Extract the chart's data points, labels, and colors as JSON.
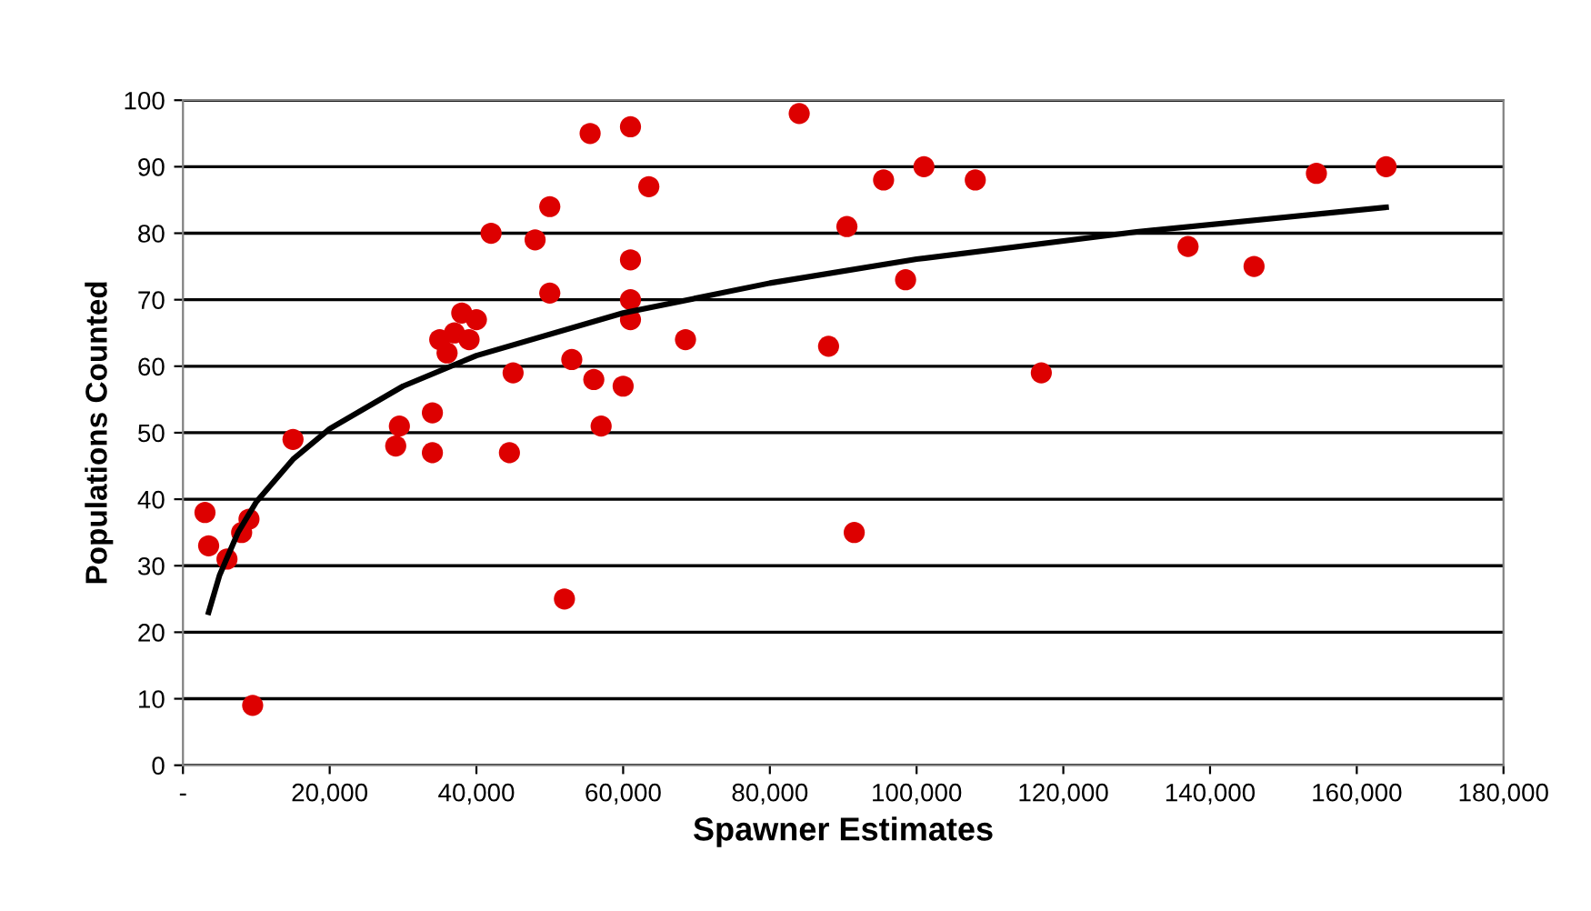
{
  "chart_data": {
    "type": "scatter",
    "xlabel": "Spawner Estimates",
    "ylabel": "Populations Counted",
    "xlim": [
      0,
      180000
    ],
    "ylim": [
      0,
      100
    ],
    "xticks": [
      {
        "value": 0,
        "label": "-"
      },
      {
        "value": 20000,
        "label": "20,000"
      },
      {
        "value": 40000,
        "label": "40,000"
      },
      {
        "value": 60000,
        "label": "60,000"
      },
      {
        "value": 80000,
        "label": "80,000"
      },
      {
        "value": 100000,
        "label": "100,000"
      },
      {
        "value": 120000,
        "label": "120,000"
      },
      {
        "value": 140000,
        "label": "140,000"
      },
      {
        "value": 160000,
        "label": "160,000"
      },
      {
        "value": 180000,
        "label": "180,000"
      }
    ],
    "yticks": [
      0,
      10,
      20,
      30,
      40,
      50,
      60,
      70,
      80,
      90,
      100
    ],
    "grid": "y",
    "marker": "circle",
    "legend": false,
    "series": [
      {
        "color": "#dd0000",
        "x": [
          3000,
          3500,
          6000,
          9000,
          8000,
          9500,
          15000,
          29000,
          29500,
          34000,
          34000,
          35000,
          37000,
          38000,
          40000,
          39000,
          36000,
          42000,
          48000,
          50000,
          50000,
          45000,
          44500,
          52000,
          53000,
          56000,
          55500,
          57000,
          60000,
          61000,
          61000,
          61000,
          61000,
          63500,
          68500,
          84000,
          88000,
          90500,
          91500,
          95500,
          98500,
          101000,
          108000,
          117000,
          137000,
          146000,
          154500,
          164000
        ],
        "values": [
          38,
          33,
          31,
          37,
          35,
          9,
          49,
          48,
          51,
          53,
          47,
          64,
          65,
          68,
          67,
          64,
          62,
          80,
          79,
          84,
          71,
          59,
          47,
          25,
          61,
          58,
          95,
          51,
          57,
          96,
          76,
          70,
          67,
          87,
          64,
          98,
          63,
          81,
          35,
          88,
          73,
          90,
          88,
          59,
          78,
          75,
          89,
          90
        ]
      },
      {
        "type": "line",
        "color": "#000000",
        "marker": "none",
        "x": [
          3500,
          5000,
          7500,
          10000,
          15000,
          20000,
          30000,
          40000,
          60000,
          80000,
          100000,
          130000,
          164000
        ],
        "values": [
          23.0,
          28.6,
          35.0,
          39.6,
          46.0,
          50.6,
          57.0,
          61.6,
          68.0,
          72.5,
          76.1,
          80.2,
          83.9
        ]
      }
    ]
  }
}
